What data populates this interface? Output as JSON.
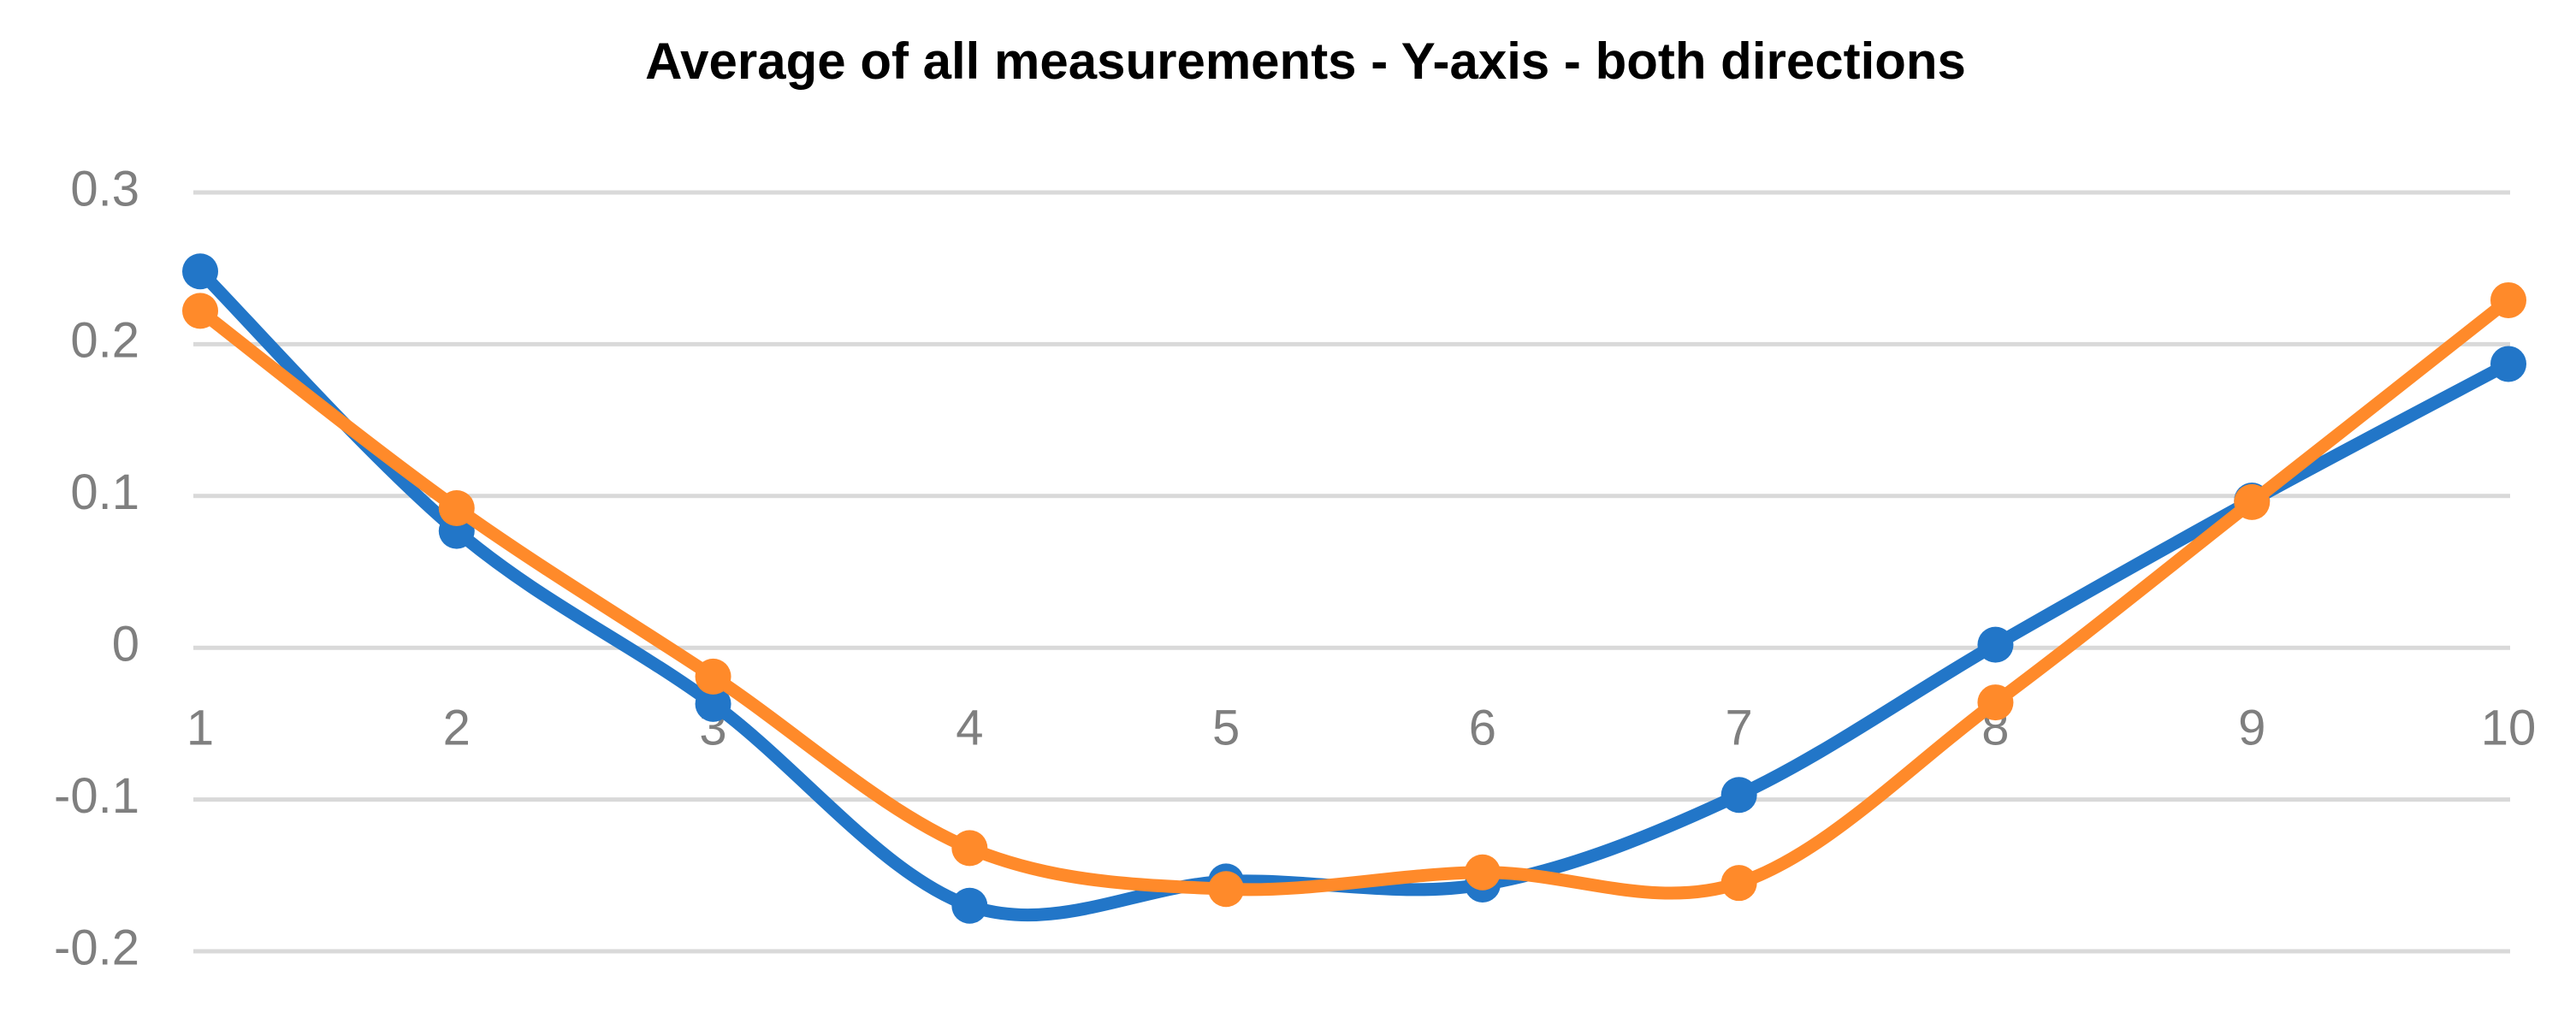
{
  "chart_data": {
    "type": "line",
    "title": "Average of all measurements - Y-axis - both directions",
    "x": [
      1,
      2,
      3,
      4,
      5,
      6,
      7,
      8,
      9,
      10
    ],
    "series": [
      {
        "color": "#2276c8",
        "values": [
          0.248,
          0.077,
          -0.037,
          -0.17,
          -0.154,
          -0.156,
          -0.097,
          0.002,
          0.097,
          0.187
        ]
      },
      {
        "color": "#ff8a2a",
        "values": [
          0.222,
          0.092,
          -0.019,
          -0.132,
          -0.159,
          -0.148,
          -0.155,
          -0.036,
          0.096,
          0.229
        ]
      }
    ],
    "xlim": [
      1,
      10
    ],
    "xticks": [
      1,
      2,
      3,
      4,
      5,
      6,
      7,
      8,
      9,
      10
    ],
    "ylim": [
      -0.2,
      0.3
    ],
    "yticks": [
      -0.2,
      -0.1,
      0,
      0.1,
      0.2,
      0.3
    ],
    "grid": true,
    "smooth": true
  }
}
